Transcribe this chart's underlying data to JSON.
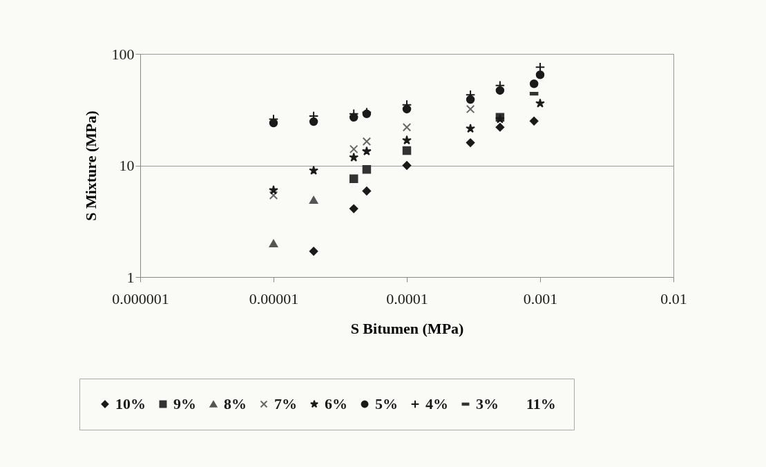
{
  "chart_data": {
    "type": "scatter",
    "xlabel": "S Bitumen (MPa)",
    "ylabel": "S Mixture (MPa)",
    "log": "xy",
    "xlim": [
      1e-06,
      0.01
    ],
    "xticks": [
      {
        "value": 1e-06,
        "label": "0.000001"
      },
      {
        "value": 1e-05,
        "label": "0.00001"
      },
      0.0001,
      0.001,
      0.01
    ],
    "ylim": [
      1,
      100
    ],
    "yticks": [
      1,
      10,
      100
    ],
    "grid": "y",
    "legend": "bottom",
    "series": [
      {
        "name": "10%",
        "color": "#1a1a1a",
        "marker": "diamond",
        "x": [
          2e-05,
          4e-05,
          5e-05,
          0.0001,
          0.0003,
          0.0005,
          0.0009
        ],
        "values": [
          1.7,
          4.1,
          5.9,
          10,
          16,
          22,
          25
        ]
      },
      {
        "name": "9%",
        "color": "#333333",
        "marker": "square",
        "x": [
          4e-05,
          5e-05,
          0.0001,
          0.0005
        ],
        "values": [
          7.6,
          9.2,
          13.6,
          27
        ]
      },
      {
        "name": "8%",
        "color": "#555555",
        "marker": "triangle",
        "x": [
          1e-05,
          2e-05
        ],
        "values": [
          2,
          4.9
        ]
      },
      {
        "name": "7%",
        "color": "#666666",
        "marker": "cross",
        "x": [
          1e-05,
          4e-05,
          5e-05,
          0.0001,
          0.0003
        ],
        "values": [
          5.4,
          14,
          16.4,
          22,
          32
        ]
      },
      {
        "name": "6%",
        "color": "#1a1a1a",
        "marker": "star",
        "x": [
          1e-05,
          2e-05,
          4e-05,
          5e-05,
          0.0001,
          0.0003,
          0.0005,
          0.001
        ],
        "values": [
          6,
          9,
          11.8,
          13.4,
          16.8,
          21.4,
          26,
          36
        ]
      },
      {
        "name": "5%",
        "color": "#1a1a1a",
        "marker": "circle",
        "x": [
          1e-05,
          2e-05,
          4e-05,
          5e-05,
          0.0001,
          0.0003,
          0.0005,
          0.0009,
          0.001
        ],
        "values": [
          24,
          24.7,
          27,
          29,
          32,
          39,
          47,
          54,
          65
        ]
      },
      {
        "name": "4%",
        "color": "#1a1a1a",
        "marker": "plus",
        "x": [
          1e-05,
          2e-05,
          4e-05,
          5e-05,
          0.0001,
          0.0003,
          0.0005,
          0.001
        ],
        "values": [
          26,
          27.7,
          29,
          30,
          35,
          43,
          52,
          76
        ]
      },
      {
        "name": "3%",
        "color": "#333333",
        "x": [
          0.0009
        ],
        "values": [
          44
        ]
      },
      {
        "name": "11%",
        "marker": "none"
      }
    ]
  }
}
